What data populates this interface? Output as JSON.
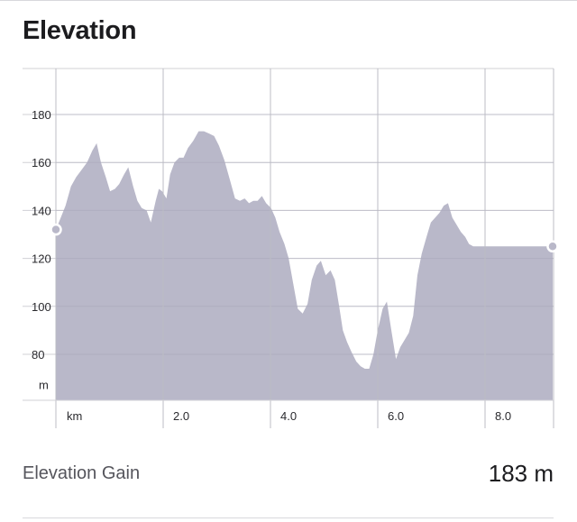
{
  "header": {
    "title": "Elevation"
  },
  "chart_data": {
    "type": "area",
    "title": "Elevation",
    "xlabel": "km",
    "ylabel": "m",
    "xlim": [
      0,
      9.35
    ],
    "ylim": [
      60,
      200
    ],
    "x_ticks": [
      2.0,
      4.0,
      6.0,
      8.0
    ],
    "x_tick_labels": [
      "2.0",
      "4.0",
      "6.0",
      "8.0"
    ],
    "y_ticks": [
      80,
      100,
      120,
      140,
      160,
      180
    ],
    "y_tick_labels": [
      "80",
      "100",
      "120",
      "140",
      "160",
      "180"
    ],
    "grid": true,
    "colors": {
      "fill": "#b9b8c9",
      "grid": "#d0d0d6",
      "marker": "#b9b8c9"
    },
    "series": [
      {
        "x": [
          0.0,
          0.09,
          0.18,
          0.28,
          0.38,
          0.48,
          0.58,
          0.68,
          0.76,
          0.84,
          0.93,
          1.01,
          1.1,
          1.18,
          1.27,
          1.35,
          1.44,
          1.52,
          1.6,
          1.69,
          1.77,
          1.86,
          1.92,
          1.98,
          2.06,
          2.13,
          2.21,
          2.3,
          2.38,
          2.46,
          2.56,
          2.66,
          2.76,
          2.86,
          2.95,
          3.04,
          3.14,
          3.24,
          3.34,
          3.43,
          3.52,
          3.6,
          3.68,
          3.76,
          3.84,
          3.92,
          4.01,
          4.09,
          4.17,
          4.26,
          4.34,
          4.42,
          4.51,
          4.6,
          4.69,
          4.77,
          4.86,
          4.94,
          5.03,
          5.12,
          5.2,
          5.28,
          5.35,
          5.43,
          5.51,
          5.6,
          5.68,
          5.76,
          5.84,
          5.92,
          6.0,
          6.09,
          6.17,
          6.26,
          6.34,
          6.42,
          6.5,
          6.58,
          6.66,
          6.74,
          6.82,
          6.91,
          6.99,
          7.07,
          7.15,
          7.23,
          7.31,
          7.39,
          7.47,
          7.55,
          7.63,
          7.7,
          7.78,
          7.86,
          7.94,
          8.02,
          8.11,
          8.21,
          8.31,
          8.43,
          8.55,
          8.67,
          8.76,
          8.86,
          8.96,
          9.06,
          9.17,
          9.26
        ],
        "y": [
          132,
          137,
          142,
          150,
          154,
          157,
          160,
          165,
          168,
          160,
          154,
          148,
          149,
          151,
          155,
          158,
          150,
          144,
          141,
          140,
          135,
          144,
          149,
          148,
          145,
          155,
          160,
          162,
          162,
          166,
          169,
          173,
          173,
          172,
          171,
          167,
          161,
          153,
          145,
          144,
          145,
          143,
          144,
          144,
          146,
          143,
          141,
          137,
          131,
          126,
          120,
          110,
          99,
          97,
          101,
          111,
          117,
          119,
          113,
          115,
          111,
          100,
          90,
          85,
          81,
          77,
          75,
          74,
          74,
          80,
          90,
          99,
          102,
          89,
          78,
          83,
          86,
          89,
          96,
          113,
          122,
          129,
          135,
          137,
          139,
          142,
          143,
          137,
          134,
          131,
          129,
          126,
          125,
          125,
          125,
          125,
          125,
          125,
          125,
          125,
          125,
          125,
          125,
          125,
          125,
          125,
          125,
          125
        ]
      }
    ],
    "markers": [
      {
        "x": 0.0,
        "y": 132
      },
      {
        "x": 9.26,
        "y": 125
      }
    ]
  },
  "stats": {
    "elevation_gain_label": "Elevation Gain",
    "elevation_gain_value": "183 m"
  }
}
